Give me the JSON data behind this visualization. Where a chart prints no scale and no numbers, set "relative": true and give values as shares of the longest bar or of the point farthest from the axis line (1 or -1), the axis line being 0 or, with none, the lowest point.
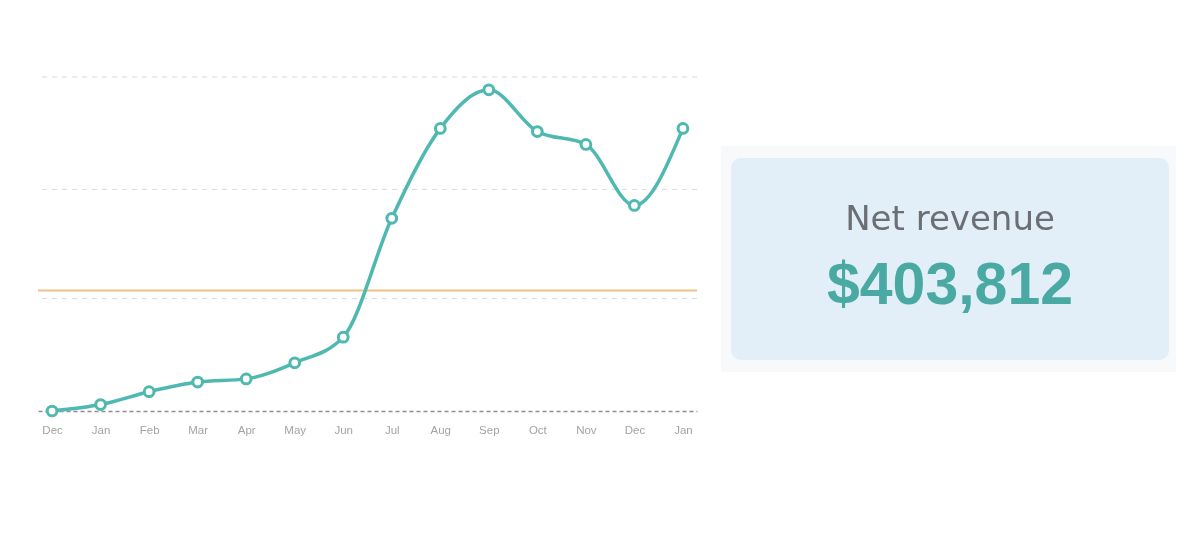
{
  "chart_data": [
    {
      "type": "line",
      "categories": [
        "Dec",
        "Jan",
        "Feb",
        "Mar",
        "Apr",
        "May",
        "Jun",
        "Jul",
        "Aug",
        "Sep",
        "Oct",
        "Nov",
        "Dec",
        "Jan"
      ],
      "relative": true,
      "series": [
        {
          "color": "#4fb8b0",
          "values": [
            0,
            0.02,
            0.06,
            0.09,
            0.1,
            0.15,
            0.23,
            0.6,
            0.88,
            1,
            0.87,
            0.83,
            0.64,
            0.88
          ]
        }
      ],
      "ref_lines": [
        {
          "axis": "y",
          "value": 0.35,
          "color": "#d9d9d9",
          "line_style": "dashed"
        },
        {
          "axis": "y",
          "value": 0.69,
          "color": "#d9d9d9",
          "line_style": "dashed"
        },
        {
          "axis": "y",
          "value": 1.04,
          "color": "#d9d9d9",
          "line_style": "dashed"
        },
        {
          "axis": "y",
          "value": 0.375,
          "color": "#efc083",
          "line_style": "solid"
        }
      ],
      "marker": "circle",
      "line_style": "solid"
    },
    {
      "type": "other",
      "title": "Net revenue",
      "annotations": [
        "$403,812"
      ]
    }
  ]
}
